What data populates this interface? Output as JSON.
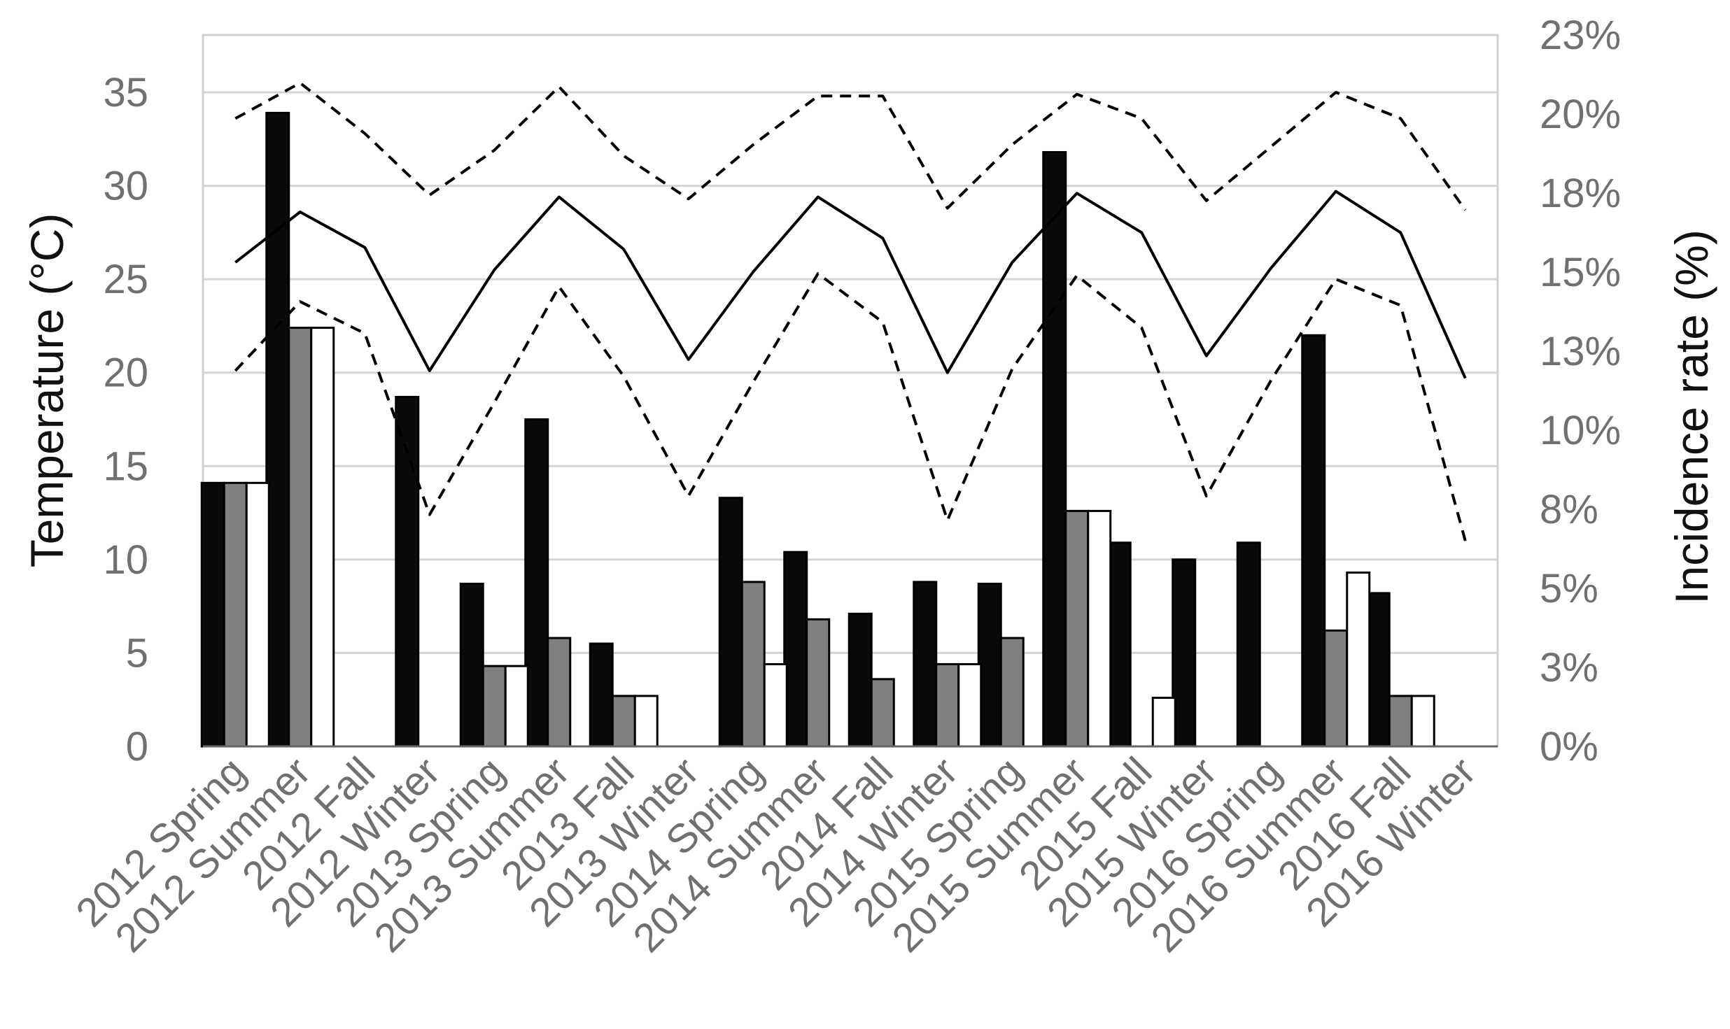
{
  "chart_data": {
    "type": "bar",
    "categories": [
      "2012 Spring",
      "2012 Summer",
      "2012 Fall",
      "2012 Winter",
      "2013 Spring",
      "2013 Summer",
      "2013 Fall",
      "2013 Winter",
      "2014 Spring",
      "2014 Summer",
      "2014 Fall",
      "2014 Winter",
      "2015 Spring",
      "2015 Summer",
      "2015 Fall",
      "2015 Winter",
      "2016 Spring",
      "2016 Summer",
      "2016 Fall",
      "2016 Winter"
    ],
    "ylabel": "Temperature (°C)",
    "y2label": "Incidence rate (%)",
    "ylim": [
      0,
      35
    ],
    "y2lim": [
      0,
      23
    ],
    "y2_ticks": [
      "0%",
      "3%",
      "5%",
      "8%",
      "10%",
      "13%",
      "15%",
      "18%",
      "20%",
      "23%"
    ],
    "grid": true,
    "bar_series": [
      {
        "color": "#0a0a0a",
        "values": [
          14.1,
          33.9,
          0,
          18.7,
          8.7,
          17.5,
          5.5,
          0,
          13.3,
          10.4,
          7.1,
          8.8,
          8.7,
          31.8,
          10.9,
          10.0,
          10.9,
          22.0,
          8.2,
          0
        ]
      },
      {
        "color": "#808080",
        "values": [
          14.1,
          22.4,
          0,
          0,
          4.3,
          5.8,
          2.7,
          0,
          8.8,
          6.8,
          3.6,
          4.4,
          5.8,
          12.6,
          0,
          0,
          0,
          6.2,
          2.7,
          0
        ]
      },
      {
        "color": "#ffffff",
        "values": [
          14.1,
          22.4,
          0,
          0,
          4.3,
          0,
          2.7,
          0,
          4.4,
          0,
          0,
          4.4,
          0,
          12.6,
          2.6,
          0,
          0,
          9.3,
          2.7,
          0
        ]
      }
    ],
    "line_series": [
      {
        "style": "solid",
        "values": [
          25.9,
          28.6,
          26.7,
          20.1,
          25.5,
          29.4,
          26.6,
          20.7,
          25.4,
          29.4,
          27.2,
          20.0,
          25.9,
          29.6,
          27.5,
          20.9,
          25.6,
          29.7,
          27.5,
          19.7
        ]
      },
      {
        "style": "dashed",
        "values": [
          33.6,
          35.5,
          32.8,
          29.5,
          31.9,
          35.3,
          31.6,
          29.3,
          32.2,
          34.8,
          34.8,
          28.8,
          32.2,
          34.9,
          33.6,
          29.2,
          32.1,
          35.0,
          33.6,
          28.7
        ]
      },
      {
        "style": "dashed",
        "values": [
          20.1,
          23.8,
          22.1,
          12.4,
          18.4,
          24.6,
          19.8,
          13.4,
          19.5,
          25.3,
          22.7,
          12.1,
          20.2,
          25.2,
          22.4,
          13.4,
          19.6,
          25.0,
          23.6,
          11.0
        ]
      }
    ]
  }
}
